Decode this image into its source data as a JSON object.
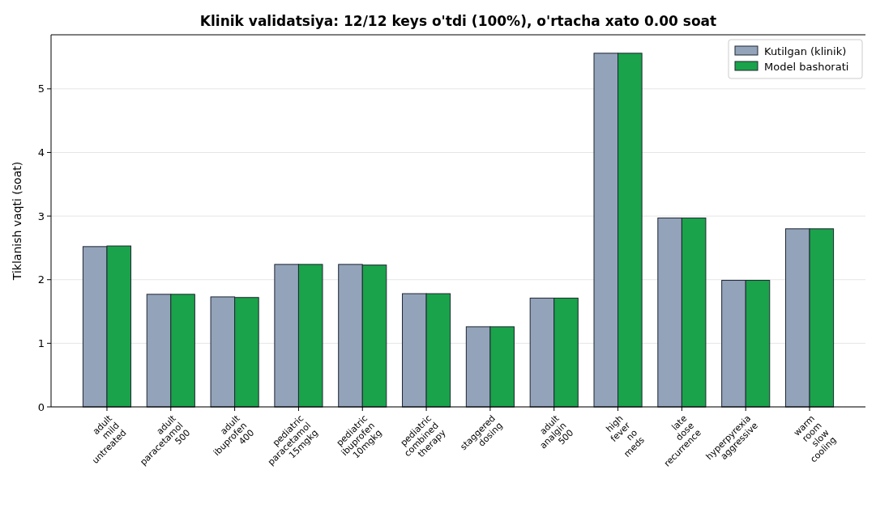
{
  "chart_data": {
    "type": "bar",
    "title": "Klinik validatsiya: 12/12 keys o'tdi (100%), o'rtacha xato 0.00 soat",
    "ylabel": "Tiklanish vaqti (soat)",
    "categories": [
      "adult\nmild\nuntreated",
      "adult\nparacetamol\n500",
      "adult\nibuprofen\n400",
      "pediatric\nparacetamol\n15mgkg",
      "pediatric\nibuprofen\n10mgkg",
      "pediatric\ncombined\ntherapy",
      "staggered\ndosing",
      "adult\nanalgin\n500",
      "high\nfever\nno\nmeds",
      "late\ndose\nrecurrence",
      "hyperpyrexia\naggressive",
      "warm\nroom\nslow\ncooling"
    ],
    "series": [
      {
        "name": "Kutilgan (klinik)",
        "color": "#93a3ba",
        "values": [
          2.52,
          1.77,
          1.73,
          2.24,
          2.24,
          1.78,
          1.26,
          1.71,
          5.56,
          2.97,
          1.99,
          2.8
        ]
      },
      {
        "name": "Model bashorati",
        "color": "#1aa34a",
        "values": [
          2.53,
          1.77,
          1.72,
          2.24,
          2.23,
          1.78,
          1.26,
          1.71,
          5.56,
          2.97,
          1.99,
          2.8
        ]
      }
    ],
    "ylim": [
      0,
      5.85
    ],
    "yticks": [
      0,
      1,
      2,
      3,
      4,
      5
    ],
    "grid": "y",
    "legend": "top right"
  }
}
